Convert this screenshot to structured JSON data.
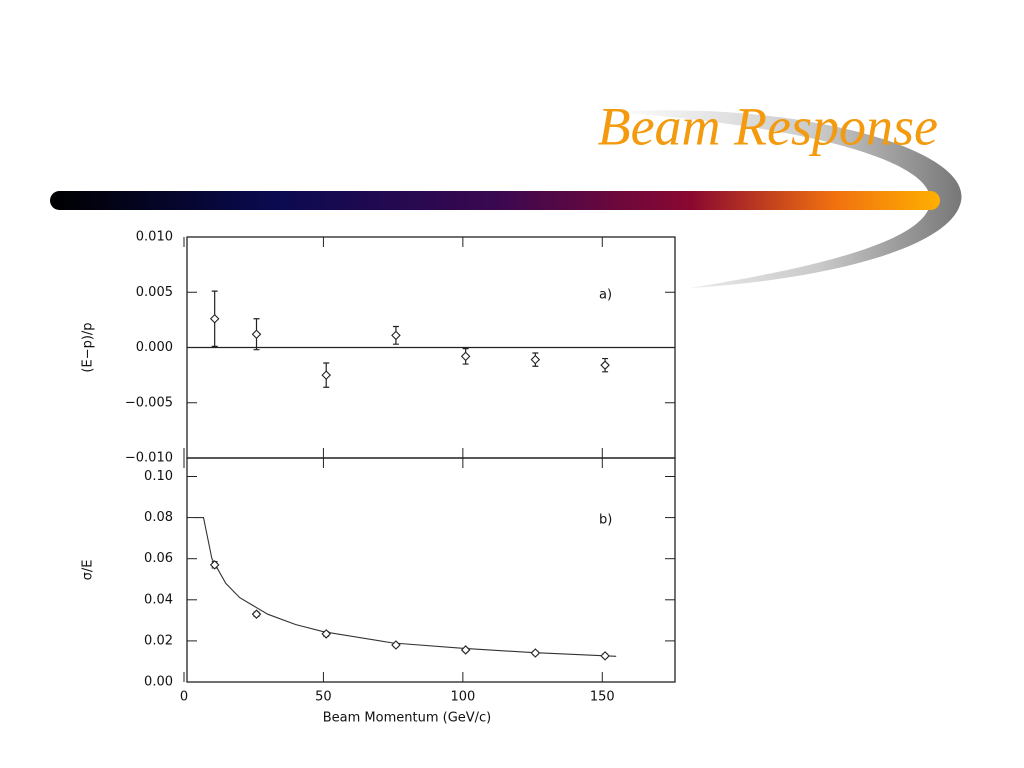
{
  "title": "Beam Response",
  "chart_data": [
    {
      "type": "scatter",
      "panel_label": "a)",
      "ylabel": "(E−p)/p",
      "xlim": [
        0,
        175
      ],
      "ylim": [
        -0.01,
        0.01
      ],
      "yticks": [
        {
          "value": 0.01,
          "label": "0.010"
        },
        {
          "value": 0.005,
          "label": "0.005"
        },
        {
          "value": 0.0,
          "label": "0.000"
        },
        {
          "value": -0.005,
          "label": "−0.005"
        },
        {
          "value": -0.01,
          "label": "−0.010"
        }
      ],
      "points": {
        "x": [
          11,
          26,
          51,
          76,
          101,
          126,
          151
        ],
        "values": [
          0.0026,
          0.0012,
          -0.0025,
          0.0011,
          -0.0008,
          -0.0011,
          -0.0016
        ],
        "errors": [
          0.0025,
          0.0014,
          0.0011,
          0.0008,
          0.0007,
          0.0006,
          0.0006
        ]
      },
      "zero_line": true
    },
    {
      "type": "scatter",
      "panel_label": "b)",
      "ylabel": "σ/E",
      "xlabel": "Beam Momentum (GeV/c)",
      "xlim": [
        0,
        175
      ],
      "ylim": [
        0,
        0.109
      ],
      "xticks": [
        0,
        50,
        100,
        150
      ],
      "yticks": [
        {
          "value": 0.1,
          "label": "0.10"
        },
        {
          "value": 0.08,
          "label": "0.08"
        },
        {
          "value": 0.06,
          "label": "0.06"
        },
        {
          "value": 0.04,
          "label": "0.04"
        },
        {
          "value": 0.02,
          "label": "0.02"
        },
        {
          "value": 0.0,
          "label": "0.00"
        }
      ],
      "points": {
        "x": [
          11,
          26,
          51,
          76,
          101,
          126,
          151
        ],
        "values": [
          0.057,
          0.033,
          0.0234,
          0.018,
          0.0156,
          0.0141,
          0.0127
        ],
        "errors": [
          0.0015,
          0.001,
          0.001,
          0.0008,
          0.0008,
          0.0008,
          0.0008
        ]
      },
      "fit": {
        "x": [
          4,
          7,
          10,
          15,
          20,
          30,
          40,
          50,
          75,
          100,
          125,
          155
        ],
        "values": [
          0.08,
          0.08,
          0.06,
          0.048,
          0.041,
          0.033,
          0.028,
          0.0245,
          0.019,
          0.0164,
          0.0143,
          0.0125
        ]
      }
    }
  ]
}
